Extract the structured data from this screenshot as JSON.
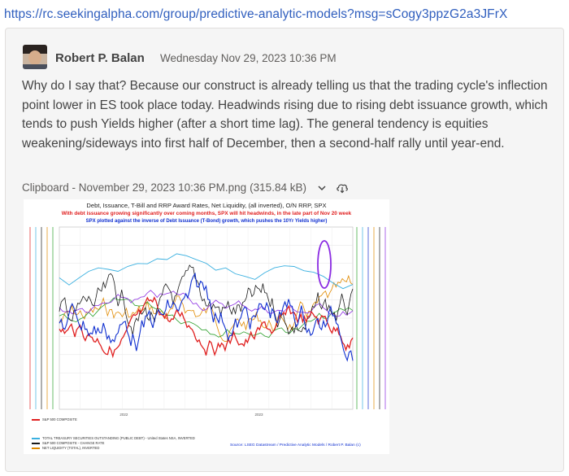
{
  "link": {
    "url": "https://rc.seekingalpha.com/group/predictive-analytic-models?msg=sCogy3ppzG2a3JFrX"
  },
  "post": {
    "author": "Robert P. Balan",
    "timestamp": "Wednesday Nov 29, 2023 10:36 PM",
    "body": "Why do I say that? Because our construct is already telling us that the trading cycle's inflection point lower in ES took place today. Headwinds rising due to rising debt issuance growth, which tends to push Yields higher (after a short time lag). The general tendency is equities weakening/sideways into first half of December, then a second-half rally until year-end."
  },
  "attachment": {
    "name": "Clipboard - November 29, 2023 10:36 PM.png",
    "size": "(315.84 kB)",
    "icons": [
      "chevron-down-icon",
      "cloud-download-icon"
    ]
  },
  "chart": {
    "title": "Debt, Issuance, T-Bill and RRP Award Rates, Net Liquidity, (all inverted), O/N RRP, SPX",
    "subtitle_red": "With debt issuance growing significantly over coming months, SPX will hit headwinds, in the late part of Nov 20 week",
    "subtitle_blue": "SPX plotted against the inverse of Debt Issuance (T-Bond) growth, which pushes the 10Yr Yields higher)",
    "legend": [
      {
        "label": "S&P 500 COMPOSITE",
        "color": "#e02020"
      },
      {
        "label": "TOTAL TREASURY SECURITIES OUTSTANDING (PUBLIC DEBT) - United States NSA, INVERTED",
        "color": "#3ab0e0"
      },
      {
        "label": "S&P 500 COMPOSITE - CHANGE RATE",
        "color": "#1a1a1a"
      },
      {
        "label": "NET LIQUIDITY (TOTAL), INVERTED",
        "color": "#e08a00"
      }
    ],
    "source": "Source: LSEG Datastream / Predictive Analytic Models / Robert P. Balan (c)",
    "x_ticks": [
      "2022",
      "2023"
    ]
  },
  "colors": {
    "link": "#2f5ebe",
    "card_bg": "#f5f5f5",
    "highlight_circle": "#8a2be2"
  }
}
